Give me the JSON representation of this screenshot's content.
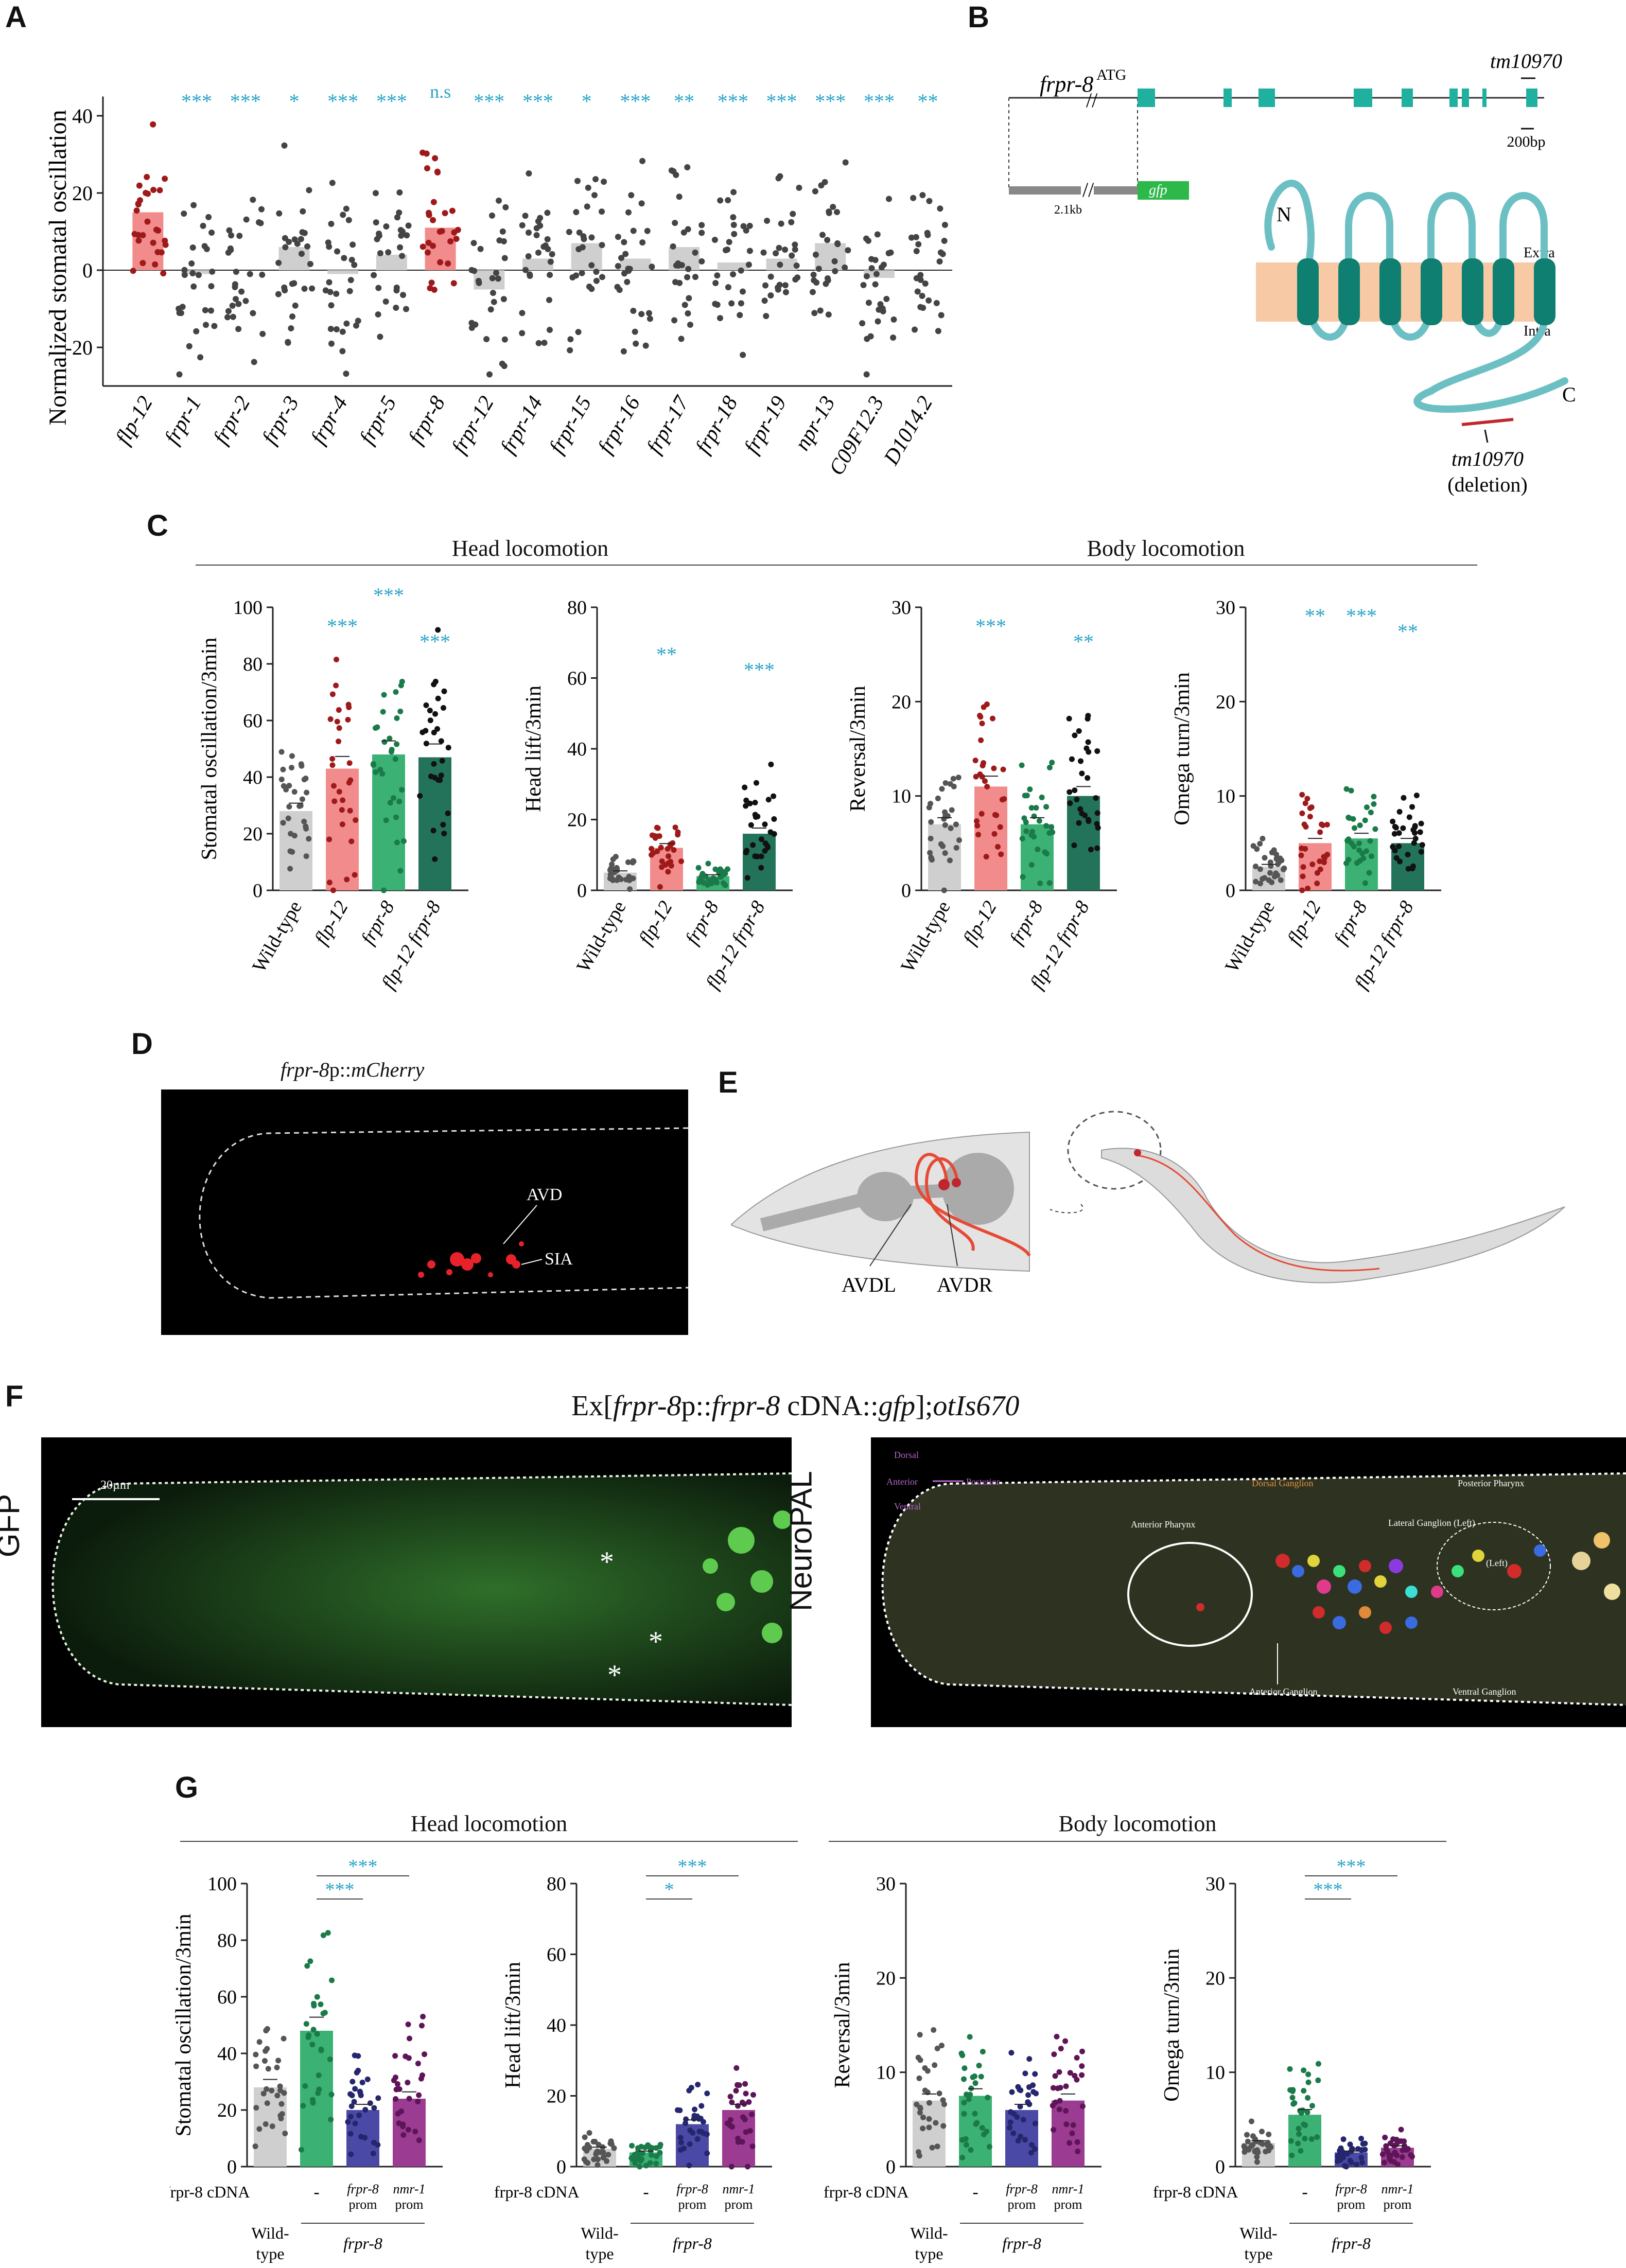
{
  "panels": {
    "A": "A",
    "B": "B",
    "C": "C",
    "D": "D",
    "E": "E",
    "F": "F",
    "G": "G"
  },
  "colors": {
    "star": "#29a3c7",
    "gray_bar": "#cfcfcf",
    "red_bar": "#f28b8b",
    "red_dot": "#9e1a1a",
    "green_bar": "#3bb273",
    "green_dot": "#1b7a49",
    "darkgreen_bar": "#23735a",
    "blue_bar": "#4a4aa6",
    "purple_bar": "#9b3c92",
    "teal": "#1fb0a0",
    "membrane": "#f8c9a5"
  },
  "panelA": {
    "ylabel": "Normalized stomatal oscillation",
    "yticks": [
      "40",
      "20",
      "0",
      "-20"
    ],
    "chart_data": {
      "type": "bar",
      "categories": [
        "flp-12",
        "frpr-1",
        "frpr-2",
        "frpr-3",
        "frpr-4",
        "frpr-5",
        "frpr-8",
        "frpr-12",
        "frpr-14",
        "frpr-15",
        "frpr-16",
        "frpr-17",
        "frpr-18",
        "frpr-19",
        "npr-13",
        "C09F12.3",
        "D1014.2"
      ],
      "values": [
        15,
        -1,
        0,
        6,
        -1,
        4,
        11,
        -5,
        3,
        7,
        3,
        6,
        2,
        3,
        7,
        -2,
        0
      ],
      "significance": [
        "",
        "***",
        "***",
        "*",
        "***",
        "***",
        "n.s",
        "***",
        "***",
        "*",
        "***",
        "**",
        "***",
        "***",
        "***",
        "***",
        "**"
      ],
      "ylim": [
        -30,
        50
      ],
      "ylabel": "Normalized stomatal oscillation"
    }
  },
  "panelB": {
    "gene": "frpr-8",
    "atg": "ATG",
    "allele": "tm10970",
    "scale": "200bp",
    "promoter_len": "2.1kb",
    "reporter": "gfp",
    "n_term": "N",
    "c_term": "C",
    "extra": "Extra",
    "intra": "Intra",
    "deletion_name": "tm10970",
    "deletion_note": "(deletion)"
  },
  "panelC": {
    "head_title": "Head locomotion",
    "body_title": "Body locomotion",
    "categories": [
      "Wild-type",
      "flp-12",
      "frpr-8",
      "flp-12 frpr-8"
    ],
    "chart_data": [
      {
        "type": "bar",
        "ylabel": "Stomatal oscillation/3min",
        "ylim": [
          0,
          100
        ],
        "yticks": [
          "0",
          "20",
          "40",
          "60",
          "80",
          "100"
        ],
        "values": [
          28,
          43,
          48,
          47
        ],
        "significance": [
          "",
          "***",
          "***",
          "***"
        ]
      },
      {
        "type": "bar",
        "ylabel": "Head lift/3min",
        "ylim": [
          0,
          80
        ],
        "yticks": [
          "0",
          "20",
          "40",
          "60",
          "80"
        ],
        "values": [
          5,
          12,
          4,
          16
        ],
        "significance": [
          "",
          "**",
          "",
          "***"
        ]
      },
      {
        "type": "bar",
        "ylabel": "Reversal/3min",
        "ylim": [
          0,
          30
        ],
        "yticks": [
          "0",
          "10",
          "20",
          "30"
        ],
        "values": [
          7,
          11,
          7,
          10
        ],
        "significance": [
          "",
          "***",
          "",
          "**"
        ]
      },
      {
        "type": "bar",
        "ylabel": "Omega turn/3min",
        "ylim": [
          0,
          30
        ],
        "yticks": [
          "0",
          "10",
          "20",
          "30"
        ],
        "values": [
          2.5,
          5,
          5.5,
          5
        ],
        "significance": [
          "",
          "**",
          "***",
          "**"
        ]
      }
    ]
  },
  "panelD": {
    "title_gene": "frpr-8",
    "title_p": "p::",
    "title_rep": "mCherry",
    "label1": "AVD",
    "label2": "SIA"
  },
  "panelE": {
    "label1": "AVDL",
    "label2": "AVDR"
  },
  "panelF": {
    "title_prefix": "Ex[",
    "title_gene1": "frpr-8",
    "title_p": "p::",
    "title_gene2": "frpr-8",
    "title_mid": " cDNA::",
    "title_gfp": "gfp",
    "title_sep": "];",
    "title_allele": "otIs670",
    "left_label": "GFP",
    "right_label": "NeuroPAL",
    "scalebar": "20µm",
    "asterisk": "*",
    "np_dorsal": "Dorsal",
    "np_anterior": "Anterior",
    "np_posterior": "Posterior",
    "np_ventral": "Ventral",
    "np_dorsal_ganglion": "Dorsal Ganglion",
    "np_posterior_pharynx": "Posterior Pharynx",
    "np_anterior_pharynx": "Anterior Pharynx",
    "np_lateral_ganglion": "Lateral Ganglion (Left)",
    "np_left": "(Left)",
    "np_anterior_ganglion": "Anterior Ganglion",
    "np_ventral_ganglion": "Ventral Ganglion"
  },
  "panelG": {
    "head_title": "Head locomotion",
    "body_title": "Body locomotion",
    "cdna_label_gene": "frpr-8",
    "cdna_label_rest": " cDNA",
    "wt_line1": "Wild-",
    "wt_line2": "type",
    "dash": "-",
    "prom1_l1": "frpr-8",
    "prom1_l2": "prom",
    "prom2_l1": "nmr-1",
    "prom2_l2": "prom",
    "group": "frpr-8",
    "chart_data": [
      {
        "type": "bar",
        "ylabel": "Stomatal oscillation/3min",
        "ylim": [
          0,
          100
        ],
        "yticks": [
          "0",
          "20",
          "40",
          "60",
          "80",
          "100"
        ],
        "values": [
          28,
          48,
          20,
          24
        ],
        "brackets": [
          "***",
          "***"
        ]
      },
      {
        "type": "bar",
        "ylabel": "Head lift/3min",
        "ylim": [
          0,
          80
        ],
        "yticks": [
          "0",
          "20",
          "40",
          "60",
          "80"
        ],
        "values": [
          5,
          4,
          12,
          16
        ],
        "brackets": [
          "*",
          "***"
        ]
      },
      {
        "type": "bar",
        "ylabel": "Reversal/3min",
        "ylim": [
          0,
          30
        ],
        "yticks": [
          "0",
          "10",
          "20",
          "30"
        ],
        "values": [
          7,
          7.5,
          6,
          7
        ],
        "brackets": []
      },
      {
        "type": "bar",
        "ylabel": "Omega turn/3min",
        "ylim": [
          0,
          30
        ],
        "yticks": [
          "0",
          "10",
          "20",
          "30"
        ],
        "values": [
          2.5,
          5.5,
          1.5,
          2
        ],
        "brackets": [
          "***",
          "***"
        ]
      }
    ]
  }
}
